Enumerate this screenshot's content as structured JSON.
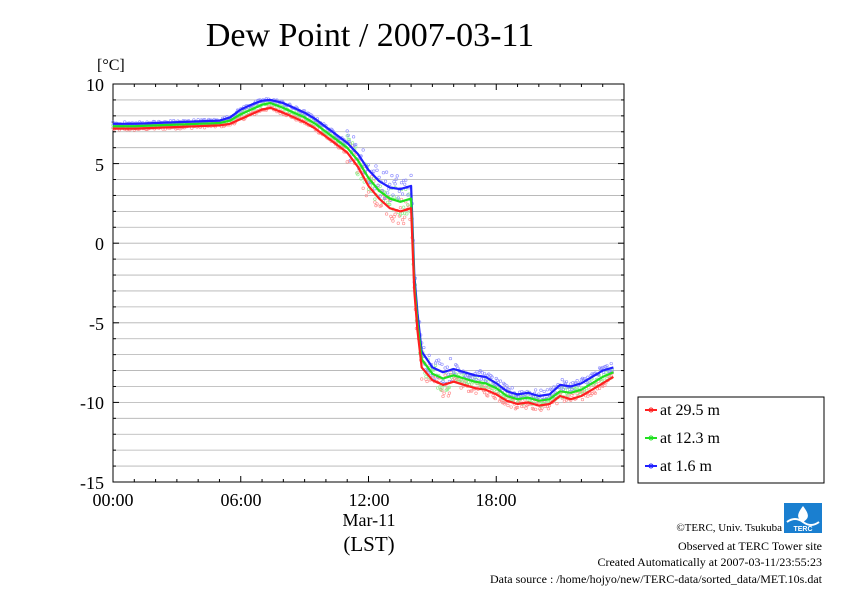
{
  "chart_data": {
    "type": "line",
    "title": "Dew Point / 2007-03-11",
    "ylabel": "[°C]",
    "xlabel_date": "Mar-11",
    "xlabel_unit": "(LST)",
    "ylim": [
      -15,
      10
    ],
    "xlim_hours": [
      0,
      24
    ],
    "x_tick_labels": [
      "00:00",
      "06:00",
      "12:00",
      "18:00"
    ],
    "y_tick_labels": [
      "10",
      "5",
      "0",
      "-5",
      "-10",
      "-15"
    ],
    "grid": true,
    "legend_position": "right",
    "x": [
      0,
      1,
      2,
      3,
      4,
      5,
      5.5,
      6,
      6.5,
      7,
      7.4,
      8,
      8.5,
      9,
      9.5,
      10,
      10.5,
      11,
      11.5,
      12,
      12.5,
      13,
      13.5,
      14,
      14.15,
      14.3,
      14.5,
      15,
      15.5,
      16,
      16.5,
      17,
      17.5,
      18,
      18.5,
      19,
      19.5,
      20,
      20.5,
      21,
      21.5,
      22,
      22.5,
      23,
      23.5
    ],
    "series": [
      {
        "name": "at 29.5 m",
        "color": "#ff2020",
        "values": [
          7.2,
          7.2,
          7.25,
          7.3,
          7.35,
          7.4,
          7.5,
          7.8,
          8.1,
          8.4,
          8.5,
          8.2,
          7.9,
          7.6,
          7.2,
          6.7,
          6.2,
          5.7,
          4.8,
          3.6,
          2.8,
          2.2,
          2.0,
          2.2,
          -3.0,
          -5.5,
          -7.8,
          -8.6,
          -8.9,
          -8.7,
          -8.9,
          -9.1,
          -9.2,
          -9.5,
          -9.9,
          -10.1,
          -10.0,
          -10.2,
          -10.1,
          -9.6,
          -9.8,
          -9.6,
          -9.2,
          -8.8,
          -8.4
        ]
      },
      {
        "name": "at 12.3 m",
        "color": "#20e020",
        "values": [
          7.35,
          7.35,
          7.4,
          7.45,
          7.5,
          7.55,
          7.7,
          8.1,
          8.4,
          8.7,
          8.8,
          8.5,
          8.2,
          7.9,
          7.5,
          7.0,
          6.5,
          6.0,
          5.2,
          4.1,
          3.3,
          2.8,
          2.6,
          2.8,
          -2.5,
          -5.0,
          -7.3,
          -8.2,
          -8.5,
          -8.3,
          -8.5,
          -8.7,
          -8.8,
          -9.1,
          -9.6,
          -9.8,
          -9.7,
          -9.9,
          -9.8,
          -9.3,
          -9.4,
          -9.2,
          -8.8,
          -8.4,
          -8.1
        ]
      },
      {
        "name": "at 1.6 m",
        "color": "#2020ff",
        "values": [
          7.5,
          7.5,
          7.55,
          7.6,
          7.65,
          7.7,
          7.9,
          8.4,
          8.7,
          8.95,
          9.0,
          8.8,
          8.5,
          8.2,
          7.8,
          7.3,
          6.8,
          6.3,
          5.6,
          4.6,
          3.9,
          3.5,
          3.4,
          3.6,
          -2.0,
          -4.4,
          -6.8,
          -7.8,
          -8.1,
          -7.9,
          -8.1,
          -8.3,
          -8.4,
          -8.8,
          -9.3,
          -9.5,
          -9.4,
          -9.6,
          -9.5,
          -8.9,
          -9.0,
          -8.8,
          -8.4,
          -8.0,
          -7.8
        ]
      }
    ]
  },
  "footer": {
    "copyright": "©TERC, Univ. Tsukuba",
    "observed": "Observed at TERC Tower site",
    "created": "Created Automatically at 2007-03-11/23:55:23",
    "source": "Data source : /home/hojyo/new/TERC-data/sorted_data/MET.10s.dat",
    "logo_text": "TERC"
  }
}
